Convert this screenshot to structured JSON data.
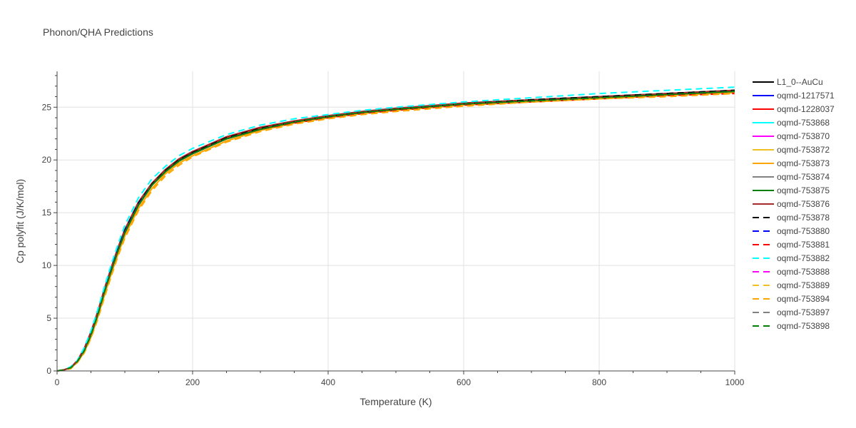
{
  "chart_data": {
    "type": "line",
    "title": "Phonon/QHA Predictions",
    "xlabel": "Temperature (K)",
    "ylabel": "Cp polyfit (J/K/mol)",
    "xlim": [
      0,
      1000
    ],
    "ylim": [
      0,
      28.4
    ],
    "x_ticks": [
      0,
      200,
      400,
      600,
      800,
      1000
    ],
    "y_ticks": [
      0,
      5,
      10,
      15,
      20,
      25
    ],
    "grid": true,
    "legend_position": "right",
    "x": [
      0,
      10,
      20,
      30,
      40,
      50,
      60,
      70,
      80,
      90,
      100,
      120,
      140,
      160,
      180,
      200,
      250,
      300,
      350,
      400,
      450,
      500,
      600,
      700,
      800,
      900,
      1000
    ],
    "series": [
      {
        "name": "L1_0--AuCu",
        "color": "#000000",
        "dash": "solid",
        "values": [
          0,
          0.1,
          0.3,
          0.9,
          2.0,
          3.5,
          5.5,
          7.7,
          9.7,
          11.6,
          13.3,
          15.9,
          17.7,
          19.0,
          20.0,
          20.7,
          22.1,
          23.0,
          23.6,
          24.1,
          24.5,
          24.8,
          25.3,
          25.7,
          26.0,
          26.3,
          26.6
        ]
      },
      {
        "name": "oqmd-1217571",
        "color": "#0000ff",
        "dash": "solid",
        "values": [
          0,
          0.1,
          0.3,
          0.9,
          2.0,
          3.5,
          5.4,
          7.6,
          9.6,
          11.5,
          13.2,
          15.8,
          17.6,
          18.9,
          19.9,
          20.6,
          22.0,
          22.9,
          23.6,
          24.1,
          24.5,
          24.8,
          25.3,
          25.6,
          25.9,
          26.2,
          26.5
        ]
      },
      {
        "name": "oqmd-1228037",
        "color": "#ff0000",
        "dash": "solid",
        "values": [
          0,
          0.1,
          0.3,
          1.0,
          2.1,
          3.7,
          5.6,
          7.8,
          9.8,
          11.7,
          13.4,
          16.0,
          17.8,
          19.1,
          20.1,
          20.8,
          22.1,
          23.0,
          23.6,
          24.1,
          24.5,
          24.8,
          25.3,
          25.6,
          25.9,
          26.2,
          26.5
        ]
      },
      {
        "name": "oqmd-753868",
        "color": "#00ffff",
        "dash": "solid",
        "values": [
          0,
          0.1,
          0.3,
          0.9,
          1.9,
          3.4,
          5.3,
          7.5,
          9.5,
          11.4,
          13.1,
          15.7,
          17.6,
          18.9,
          19.9,
          20.6,
          22.0,
          22.9,
          23.6,
          24.1,
          24.5,
          24.8,
          25.3,
          25.6,
          25.9,
          26.2,
          26.5
        ]
      },
      {
        "name": "oqmd-753870",
        "color": "#ff00ff",
        "dash": "solid",
        "values": [
          0,
          0.1,
          0.3,
          0.9,
          1.9,
          3.4,
          5.3,
          7.5,
          9.5,
          11.4,
          13.1,
          15.7,
          17.6,
          18.9,
          19.9,
          20.6,
          22.0,
          22.9,
          23.6,
          24.1,
          24.5,
          24.8,
          25.3,
          25.6,
          25.9,
          26.2,
          26.5
        ]
      },
      {
        "name": "oqmd-753872",
        "color": "#f0c020",
        "dash": "solid",
        "values": [
          0,
          0.1,
          0.3,
          0.8,
          1.8,
          3.2,
          5.1,
          7.2,
          9.2,
          11.1,
          12.8,
          15.4,
          17.3,
          18.7,
          19.7,
          20.4,
          21.8,
          22.8,
          23.5,
          24.0,
          24.4,
          24.7,
          25.2,
          25.5,
          25.8,
          26.1,
          26.4
        ]
      },
      {
        "name": "oqmd-753873",
        "color": "#ffa500",
        "dash": "solid",
        "values": [
          0,
          0.1,
          0.3,
          0.8,
          1.8,
          3.2,
          5.1,
          7.2,
          9.2,
          11.1,
          12.8,
          15.4,
          17.3,
          18.7,
          19.7,
          20.4,
          21.8,
          22.8,
          23.5,
          24.0,
          24.4,
          24.7,
          25.2,
          25.5,
          25.8,
          26.1,
          26.4
        ]
      },
      {
        "name": "oqmd-753874",
        "color": "#808080",
        "dash": "solid",
        "values": [
          0,
          0.1,
          0.3,
          0.9,
          1.9,
          3.4,
          5.3,
          7.5,
          9.5,
          11.4,
          13.1,
          15.7,
          17.6,
          18.9,
          19.9,
          20.6,
          22.0,
          22.9,
          23.6,
          24.1,
          24.5,
          24.8,
          25.3,
          25.6,
          25.9,
          26.2,
          26.5
        ]
      },
      {
        "name": "oqmd-753875",
        "color": "#008000",
        "dash": "solid",
        "values": [
          0,
          0.1,
          0.3,
          0.9,
          1.9,
          3.4,
          5.3,
          7.5,
          9.5,
          11.4,
          13.1,
          15.7,
          17.6,
          18.9,
          19.9,
          20.6,
          22.0,
          22.9,
          23.6,
          24.1,
          24.5,
          24.8,
          25.3,
          25.6,
          25.9,
          26.2,
          26.5
        ]
      },
      {
        "name": "oqmd-753876",
        "color": "#a52a2a",
        "dash": "solid",
        "values": [
          0,
          0.1,
          0.3,
          1.0,
          2.1,
          3.7,
          5.6,
          7.8,
          9.8,
          11.7,
          13.4,
          16.0,
          17.8,
          19.1,
          20.1,
          20.8,
          22.2,
          23.1,
          23.7,
          24.2,
          24.6,
          24.9,
          25.4,
          25.7,
          26.0,
          26.3,
          26.6
        ]
      },
      {
        "name": "oqmd-753878",
        "color": "#000000",
        "dash": "dash",
        "values": [
          0,
          0.1,
          0.3,
          0.9,
          2.0,
          3.5,
          5.5,
          7.7,
          9.7,
          11.6,
          13.3,
          15.9,
          17.7,
          19.0,
          20.0,
          20.7,
          22.1,
          23.0,
          23.6,
          24.1,
          24.5,
          24.8,
          25.3,
          25.7,
          26.0,
          26.3,
          26.6
        ]
      },
      {
        "name": "oqmd-753880",
        "color": "#0000ff",
        "dash": "dash",
        "values": [
          0,
          0.1,
          0.3,
          0.9,
          2.0,
          3.5,
          5.4,
          7.6,
          9.6,
          11.5,
          13.2,
          15.8,
          17.6,
          18.9,
          19.9,
          20.6,
          22.0,
          22.9,
          23.6,
          24.1,
          24.5,
          24.8,
          25.3,
          25.6,
          25.9,
          26.2,
          26.5
        ]
      },
      {
        "name": "oqmd-753881",
        "color": "#ff0000",
        "dash": "dash",
        "values": [
          0,
          0.1,
          0.3,
          0.9,
          1.9,
          3.4,
          5.3,
          7.5,
          9.5,
          11.4,
          13.1,
          15.7,
          17.6,
          18.9,
          19.9,
          20.6,
          22.0,
          22.9,
          23.5,
          24.0,
          24.4,
          24.7,
          25.2,
          25.5,
          25.8,
          26.1,
          26.3
        ]
      },
      {
        "name": "oqmd-753882",
        "color": "#00ffff",
        "dash": "dash",
        "values": [
          0,
          0.1,
          0.4,
          1.0,
          2.2,
          3.8,
          5.8,
          8.0,
          10.1,
          12.0,
          13.8,
          16.4,
          18.2,
          19.4,
          20.4,
          21.1,
          22.4,
          23.3,
          23.9,
          24.3,
          24.7,
          25.0,
          25.5,
          25.9,
          26.3,
          26.6,
          26.9
        ]
      },
      {
        "name": "oqmd-753888",
        "color": "#ff00ff",
        "dash": "dash",
        "values": [
          0,
          0.1,
          0.3,
          0.9,
          1.9,
          3.4,
          5.3,
          7.5,
          9.5,
          11.4,
          13.1,
          15.7,
          17.6,
          18.9,
          19.9,
          20.6,
          22.0,
          22.9,
          23.6,
          24.1,
          24.5,
          24.8,
          25.3,
          25.6,
          25.9,
          26.2,
          26.5
        ]
      },
      {
        "name": "oqmd-753889",
        "color": "#f0c020",
        "dash": "dash",
        "values": [
          0,
          0.1,
          0.2,
          0.8,
          1.7,
          3.1,
          4.9,
          7.0,
          9.0,
          10.9,
          12.6,
          15.2,
          17.1,
          18.5,
          19.5,
          20.3,
          21.7,
          22.7,
          23.4,
          23.9,
          24.3,
          24.6,
          25.1,
          25.5,
          25.8,
          26.0,
          26.3
        ]
      },
      {
        "name": "oqmd-753894",
        "color": "#ffa500",
        "dash": "dash",
        "values": [
          0,
          0.1,
          0.2,
          0.8,
          1.7,
          3.1,
          4.9,
          7.0,
          9.0,
          10.9,
          12.6,
          15.2,
          17.1,
          18.5,
          19.5,
          20.3,
          21.7,
          22.7,
          23.4,
          23.9,
          24.3,
          24.6,
          25.1,
          25.5,
          25.8,
          26.0,
          26.3
        ]
      },
      {
        "name": "oqmd-753897",
        "color": "#808080",
        "dash": "dash",
        "values": [
          0,
          0.1,
          0.3,
          0.9,
          1.9,
          3.4,
          5.3,
          7.5,
          9.5,
          11.4,
          13.1,
          15.7,
          17.6,
          18.9,
          19.9,
          20.6,
          22.0,
          22.9,
          23.6,
          24.1,
          24.5,
          24.8,
          25.3,
          25.6,
          25.9,
          26.2,
          26.5
        ]
      },
      {
        "name": "oqmd-753898",
        "color": "#008000",
        "dash": "dash",
        "values": [
          0,
          0.1,
          0.3,
          0.9,
          1.9,
          3.4,
          5.3,
          7.5,
          9.5,
          11.4,
          13.1,
          15.7,
          17.6,
          18.9,
          19.9,
          20.6,
          22.0,
          22.9,
          23.6,
          24.1,
          24.5,
          24.8,
          25.3,
          25.6,
          25.9,
          26.2,
          26.5
        ]
      }
    ]
  }
}
